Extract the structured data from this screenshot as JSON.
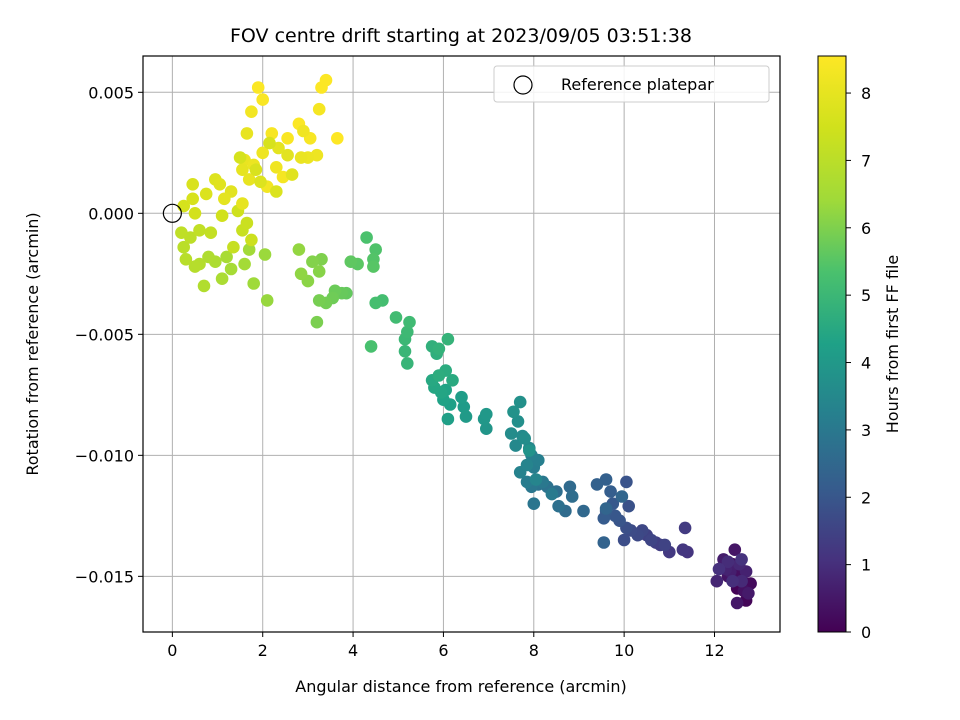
{
  "chart_data": {
    "type": "scatter",
    "title": "FOV centre drift starting at 2023/09/05 03:51:38",
    "xlabel": "Angular distance from reference (arcmin)",
    "ylabel": "Rotation from reference (arcmin)",
    "xlim": [
      -0.65,
      13.45
    ],
    "ylim": [
      -0.0173,
      0.0065
    ],
    "xticks": [
      "0",
      "2",
      "4",
      "6",
      "8",
      "10",
      "12"
    ],
    "xtick_values": [
      0,
      2,
      4,
      6,
      8,
      10,
      12
    ],
    "yticks": [
      "0.005",
      "0.000",
      "−0.005",
      "−0.010",
      "−0.015"
    ],
    "ytick_values": [
      0.005,
      0.0,
      -0.005,
      -0.01,
      -0.015
    ],
    "grid": true,
    "colormap": "viridis",
    "colorbar": {
      "label": "Hours from first FF file",
      "range": [
        0,
        8.55
      ],
      "ticks": [
        "0",
        "1",
        "2",
        "3",
        "4",
        "5",
        "6",
        "7",
        "8"
      ],
      "tick_values": [
        0,
        1,
        2,
        3,
        4,
        5,
        6,
        7,
        8
      ]
    },
    "legend": {
      "label": "Reference platepar",
      "position": "top-right"
    },
    "reference_point": {
      "x": 0.0,
      "y": 0.0
    },
    "points": [
      [
        12.5,
        -0.0155,
        0.05
      ],
      [
        12.7,
        -0.016,
        0.1
      ],
      [
        12.6,
        -0.015,
        0.15
      ],
      [
        12.8,
        -0.0153,
        0.2
      ],
      [
        12.4,
        -0.0145,
        0.25
      ],
      [
        12.55,
        -0.0148,
        0.3
      ],
      [
        12.65,
        -0.0156,
        0.35
      ],
      [
        12.3,
        -0.015,
        0.4
      ],
      [
        12.45,
        -0.0139,
        0.45
      ],
      [
        12.5,
        -0.0161,
        0.5
      ],
      [
        12.75,
        -0.0157,
        0.55
      ],
      [
        12.2,
        -0.0143,
        0.6
      ],
      [
        12.35,
        -0.0148,
        0.65
      ],
      [
        12.7,
        -0.0148,
        0.7
      ],
      [
        12.25,
        -0.0147,
        0.75
      ],
      [
        12.05,
        -0.0152,
        0.8
      ],
      [
        12.55,
        -0.0145,
        0.85
      ],
      [
        12.6,
        -0.0152,
        0.9
      ],
      [
        12.3,
        -0.0144,
        0.95
      ],
      [
        12.4,
        -0.0152,
        1.0
      ],
      [
        12.1,
        -0.0147,
        1.05
      ],
      [
        12.6,
        -0.0143,
        1.1
      ],
      [
        11.4,
        -0.014,
        1.15
      ],
      [
        11.3,
        -0.0139,
        1.2
      ],
      [
        11.0,
        -0.014,
        1.25
      ],
      [
        11.35,
        -0.013,
        1.3
      ],
      [
        10.8,
        -0.0137,
        1.35
      ],
      [
        10.7,
        -0.0136,
        1.4
      ],
      [
        10.5,
        -0.0133,
        1.45
      ],
      [
        10.9,
        -0.0137,
        1.5
      ],
      [
        10.6,
        -0.0135,
        1.55
      ],
      [
        10.4,
        -0.0131,
        1.6
      ],
      [
        10.3,
        -0.0133,
        1.65
      ],
      [
        10.15,
        -0.0131,
        1.7
      ],
      [
        10.0,
        -0.0135,
        1.75
      ],
      [
        10.05,
        -0.013,
        1.8
      ],
      [
        10.1,
        -0.0121,
        1.85
      ],
      [
        10.05,
        -0.0111,
        1.9
      ],
      [
        9.9,
        -0.0127,
        1.95
      ],
      [
        9.8,
        -0.0125,
        2.0
      ],
      [
        9.75,
        -0.012,
        2.05
      ],
      [
        9.6,
        -0.0123,
        2.1
      ],
      [
        9.55,
        -0.0126,
        2.15
      ],
      [
        9.7,
        -0.0115,
        2.2
      ],
      [
        9.6,
        -0.011,
        2.25
      ],
      [
        9.4,
        -0.0112,
        2.3
      ],
      [
        9.55,
        -0.0136,
        2.35
      ],
      [
        9.6,
        -0.0122,
        2.4
      ],
      [
        9.95,
        -0.0117,
        2.45
      ],
      [
        9.1,
        -0.0123,
        2.5
      ],
      [
        8.8,
        -0.0113,
        2.55
      ],
      [
        8.7,
        -0.0123,
        2.6
      ],
      [
        8.85,
        -0.0117,
        2.65
      ],
      [
        8.5,
        -0.0115,
        2.7
      ],
      [
        8.55,
        -0.0121,
        2.75
      ],
      [
        8.3,
        -0.0113,
        2.8
      ],
      [
        8.1,
        -0.0112,
        2.85
      ],
      [
        8.0,
        -0.012,
        2.9
      ],
      [
        7.95,
        -0.0113,
        2.95
      ],
      [
        8.2,
        -0.0111,
        3.0
      ],
      [
        8.4,
        -0.0116,
        3.05
      ],
      [
        7.85,
        -0.0111,
        3.1
      ],
      [
        8.0,
        -0.0105,
        3.15
      ],
      [
        8.1,
        -0.0102,
        3.2
      ],
      [
        7.95,
        -0.01,
        3.25
      ],
      [
        7.7,
        -0.0107,
        3.3
      ],
      [
        7.85,
        -0.0104,
        3.35
      ],
      [
        8.05,
        -0.011,
        3.4
      ],
      [
        7.9,
        -0.0097,
        3.45
      ],
      [
        7.6,
        -0.0096,
        3.5
      ],
      [
        7.75,
        -0.0092,
        3.55
      ],
      [
        7.5,
        -0.0091,
        3.6
      ],
      [
        7.8,
        -0.0093,
        3.65
      ],
      [
        7.65,
        -0.0086,
        3.7
      ],
      [
        7.7,
        -0.0078,
        3.75
      ],
      [
        7.55,
        -0.0082,
        3.8
      ],
      [
        7.9,
        -0.0098,
        3.85
      ],
      [
        6.95,
        -0.0089,
        3.9
      ],
      [
        6.9,
        -0.0085,
        3.95
      ],
      [
        6.95,
        -0.0083,
        4.0
      ],
      [
        6.5,
        -0.0084,
        4.05
      ],
      [
        6.45,
        -0.008,
        4.1
      ],
      [
        6.4,
        -0.0076,
        4.15
      ],
      [
        6.1,
        -0.0085,
        4.2
      ],
      [
        6.15,
        -0.0079,
        4.25
      ],
      [
        6.0,
        -0.0077,
        4.3
      ],
      [
        6.05,
        -0.0073,
        4.35
      ],
      [
        5.95,
        -0.0074,
        4.4
      ],
      [
        5.8,
        -0.0072,
        4.45
      ],
      [
        5.75,
        -0.0069,
        4.5
      ],
      [
        6.2,
        -0.0069,
        4.55
      ],
      [
        6.05,
        -0.0065,
        4.6
      ],
      [
        5.9,
        -0.0067,
        4.65
      ],
      [
        5.85,
        -0.0058,
        4.7
      ],
      [
        5.75,
        -0.0055,
        4.75
      ],
      [
        5.9,
        -0.0056,
        4.8
      ],
      [
        6.1,
        -0.0052,
        4.85
      ],
      [
        5.2,
        -0.0062,
        4.9
      ],
      [
        5.15,
        -0.0057,
        4.95
      ],
      [
        5.15,
        -0.0052,
        5.0
      ],
      [
        5.2,
        -0.0049,
        5.05
      ],
      [
        5.25,
        -0.0045,
        5.1
      ],
      [
        4.95,
        -0.0043,
        5.15
      ],
      [
        4.65,
        -0.0036,
        5.2
      ],
      [
        4.5,
        -0.0037,
        5.25
      ],
      [
        4.4,
        -0.0055,
        5.3
      ],
      [
        4.3,
        -0.001,
        5.35
      ],
      [
        4.5,
        -0.0015,
        5.4
      ],
      [
        4.45,
        -0.0019,
        5.45
      ],
      [
        4.45,
        -0.0022,
        5.5
      ],
      [
        4.1,
        -0.0021,
        5.55
      ],
      [
        3.95,
        -0.002,
        5.6
      ],
      [
        3.85,
        -0.0033,
        5.65
      ],
      [
        3.75,
        -0.0033,
        5.7
      ],
      [
        3.6,
        -0.0032,
        5.75
      ],
      [
        3.55,
        -0.0035,
        5.8
      ],
      [
        3.4,
        -0.0037,
        5.85
      ],
      [
        3.25,
        -0.0036,
        5.9
      ],
      [
        3.2,
        -0.0045,
        5.95
      ],
      [
        3.3,
        -0.0019,
        6.0
      ],
      [
        3.1,
        -0.002,
        6.05
      ],
      [
        3.25,
        -0.0024,
        6.1
      ],
      [
        3.0,
        -0.0028,
        6.15
      ],
      [
        2.85,
        -0.0025,
        6.2
      ],
      [
        2.8,
        -0.0015,
        6.25
      ],
      [
        2.1,
        -0.0036,
        6.3
      ],
      [
        2.05,
        -0.0017,
        6.35
      ],
      [
        1.8,
        -0.0029,
        6.4
      ],
      [
        1.7,
        -0.0015,
        6.45
      ],
      [
        1.6,
        -0.0021,
        6.5
      ],
      [
        1.3,
        -0.0023,
        6.55
      ],
      [
        1.2,
        -0.0018,
        6.6
      ],
      [
        1.1,
        -0.0027,
        6.65
      ],
      [
        0.95,
        -0.002,
        6.7
      ],
      [
        0.8,
        -0.0018,
        6.75
      ],
      [
        0.7,
        -0.003,
        6.8
      ],
      [
        0.6,
        -0.0021,
        6.85
      ],
      [
        0.5,
        -0.0022,
        6.9
      ],
      [
        0.3,
        -0.0019,
        6.95
      ],
      [
        0.25,
        -0.0014,
        7.0
      ],
      [
        0.4,
        -0.001,
        7.05
      ],
      [
        0.2,
        -0.0008,
        7.1
      ],
      [
        0.6,
        -0.0007,
        7.15
      ],
      [
        0.85,
        -0.0008,
        7.2
      ],
      [
        1.35,
        -0.0014,
        7.25
      ],
      [
        1.55,
        -0.0007,
        7.3
      ],
      [
        1.65,
        -0.0004,
        7.35
      ],
      [
        1.75,
        -0.0011,
        7.4
      ],
      [
        1.45,
        0.0001,
        7.45
      ],
      [
        1.1,
        -0.0001,
        7.5
      ],
      [
        0.5,
        0.0,
        7.55
      ],
      [
        0.25,
        0.0003,
        7.6
      ],
      [
        0.45,
        0.0006,
        7.65
      ],
      [
        0.45,
        0.0012,
        7.7
      ],
      [
        0.75,
        0.0008,
        7.75
      ],
      [
        0.95,
        0.0014,
        7.8
      ],
      [
        1.05,
        0.0012,
        7.85
      ],
      [
        1.3,
        0.0009,
        7.9
      ],
      [
        1.15,
        0.0006,
        7.95
      ],
      [
        1.55,
        0.0004,
        8.0
      ],
      [
        1.7,
        0.0014,
        8.05
      ],
      [
        1.6,
        0.0022,
        8.1
      ],
      [
        1.8,
        0.002,
        8.15
      ],
      [
        2.0,
        0.0025,
        8.2
      ],
      [
        2.3,
        0.0019,
        8.25
      ],
      [
        2.1,
        0.0011,
        8.3
      ],
      [
        2.45,
        0.0015,
        8.35
      ],
      [
        2.2,
        0.0033,
        8.4
      ],
      [
        2.55,
        0.0031,
        8.45
      ],
      [
        2.8,
        0.0037,
        8.5
      ],
      [
        3.3,
        0.0052,
        8.52
      ],
      [
        3.4,
        0.0055,
        8.52
      ],
      [
        3.65,
        0.0031,
        8.55
      ],
      [
        1.9,
        0.0052,
        8.5
      ],
      [
        2.0,
        0.0047,
        8.45
      ],
      [
        3.05,
        0.0031,
        8.4
      ],
      [
        3.25,
        0.0043,
        8.35
      ],
      [
        1.75,
        0.0042,
        8.3
      ],
      [
        2.9,
        0.0034,
        8.25
      ],
      [
        3.2,
        0.0024,
        8.2
      ],
      [
        3.0,
        0.0023,
        8.15
      ],
      [
        2.85,
        0.0023,
        8.1
      ],
      [
        1.65,
        0.0033,
        8.05
      ],
      [
        1.55,
        0.0018,
        8.0
      ],
      [
        2.35,
        0.0027,
        7.95
      ],
      [
        2.55,
        0.0024,
        7.9
      ],
      [
        2.65,
        0.0016,
        7.85
      ],
      [
        1.95,
        0.0013,
        7.8
      ],
      [
        2.3,
        0.0009,
        7.75
      ],
      [
        1.85,
        0.0018,
        7.7
      ],
      [
        2.15,
        0.0029,
        7.65
      ],
      [
        1.5,
        0.0023,
        7.6
      ]
    ]
  }
}
